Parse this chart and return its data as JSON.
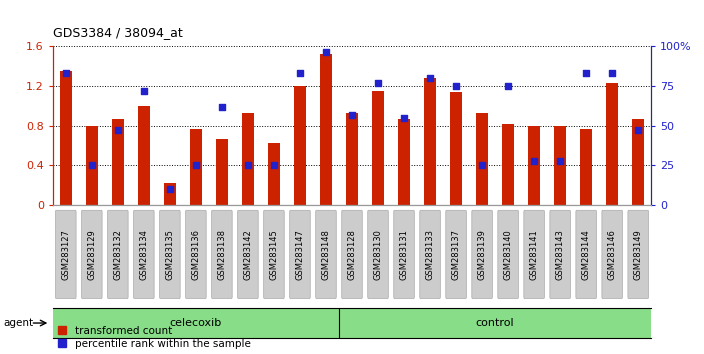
{
  "title": "GDS3384 / 38094_at",
  "samples": [
    "GSM283127",
    "GSM283129",
    "GSM283132",
    "GSM283134",
    "GSM283135",
    "GSM283136",
    "GSM283138",
    "GSM283142",
    "GSM283145",
    "GSM283147",
    "GSM283148",
    "GSM283128",
    "GSM283130",
    "GSM283131",
    "GSM283133",
    "GSM283137",
    "GSM283139",
    "GSM283140",
    "GSM283141",
    "GSM283143",
    "GSM283144",
    "GSM283146",
    "GSM283149"
  ],
  "red_values": [
    1.35,
    0.8,
    0.87,
    1.0,
    0.22,
    0.77,
    0.67,
    0.93,
    0.63,
    1.2,
    1.52,
    0.93,
    1.15,
    0.87,
    1.28,
    1.14,
    0.93,
    0.82,
    0.8,
    0.8,
    0.77,
    1.23,
    0.87
  ],
  "blue_values_pct": [
    83,
    25,
    47,
    72,
    10,
    25,
    62,
    25,
    25,
    83,
    96,
    57,
    77,
    55,
    80,
    75,
    25,
    75,
    28,
    28,
    83,
    83,
    47
  ],
  "celecoxib_count": 11,
  "control_count": 12,
  "bar_color": "#cc2200",
  "dot_color": "#2222cc",
  "group_label_color": "#88dd88",
  "group_labels": [
    "celecoxib",
    "control"
  ],
  "agent_label": "agent",
  "legend_red": "transformed count",
  "legend_blue": "percentile rank within the sample",
  "ylim_left": [
    0,
    1.6
  ],
  "ylim_right": [
    0,
    100
  ],
  "yticks_left": [
    0,
    0.4,
    0.8,
    1.2,
    1.6
  ],
  "yticks_right": [
    0,
    25,
    50,
    75,
    100
  ],
  "ytick_labels_right": [
    "0",
    "25",
    "50",
    "75",
    "100%"
  ],
  "xtick_bg": "#cccccc"
}
